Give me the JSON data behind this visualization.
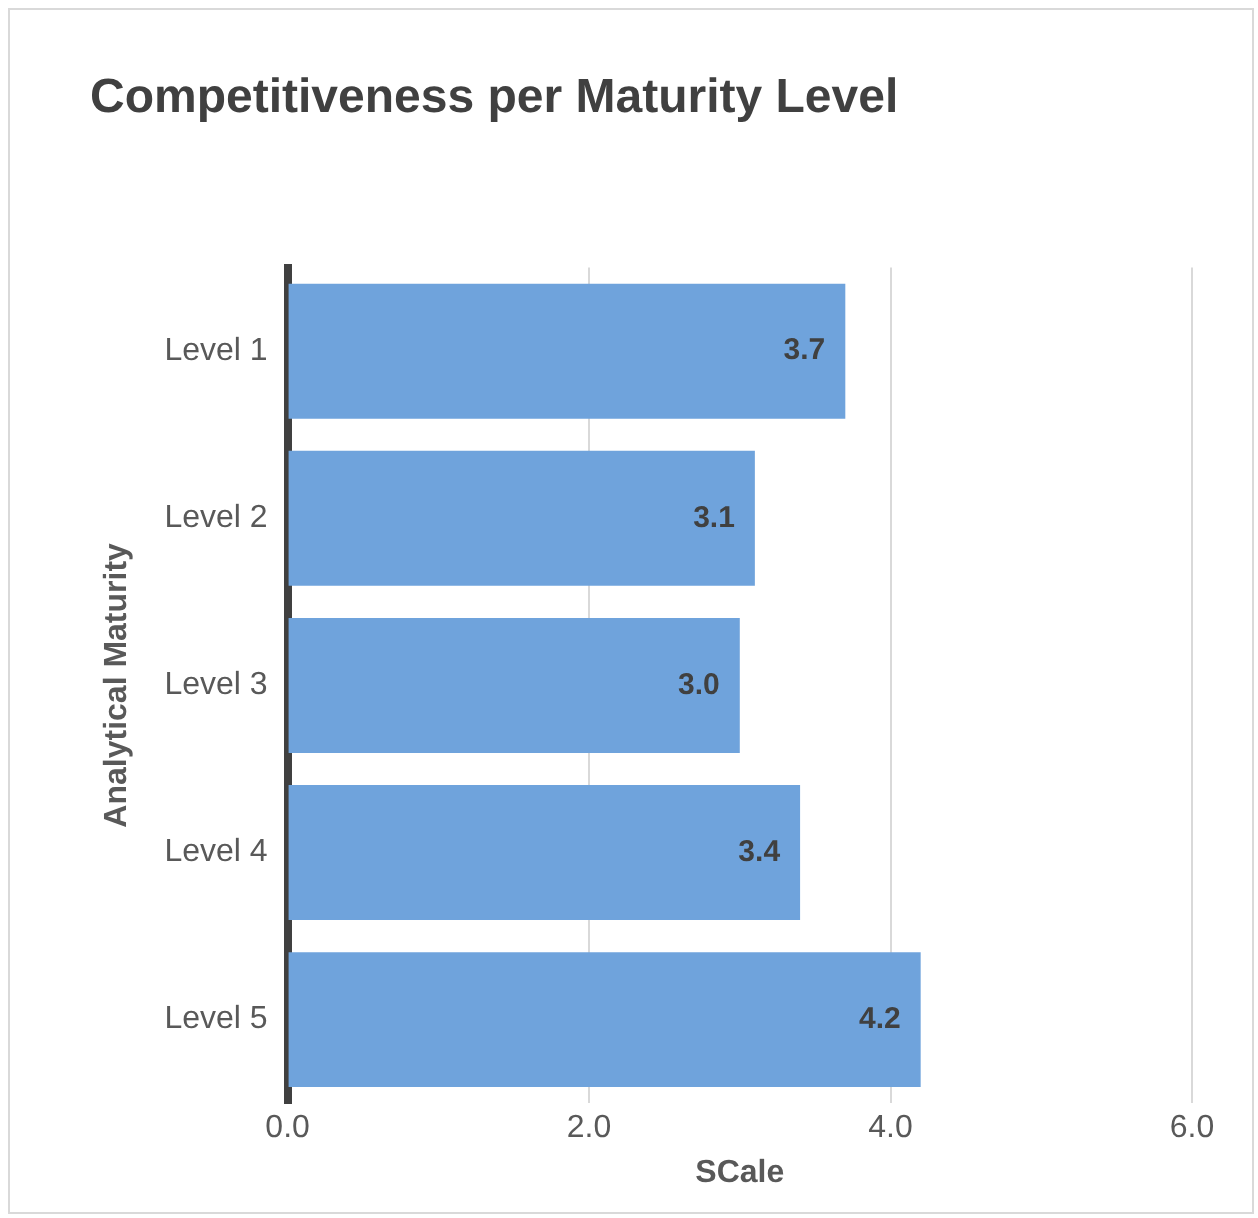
{
  "chart_data": {
    "type": "bar",
    "orientation": "horizontal",
    "title": "Competitiveness per Maturity Level",
    "xlabel": "SCale",
    "ylabel": "Analytical Maturity",
    "categories": [
      "Level 1",
      "Level 2",
      "Level 3",
      "Level 4",
      "Level 5"
    ],
    "values": [
      3.7,
      3.1,
      3.0,
      3.4,
      4.2
    ],
    "value_labels": [
      "3.7",
      "3.1",
      "3.0",
      "3.4",
      "4.2"
    ],
    "color": "#6fa3dc",
    "xlim": [
      0,
      6
    ],
    "xticks": [
      {
        "value": 0,
        "label": "0.0"
      },
      {
        "value": 2,
        "label": "2.0"
      },
      {
        "value": 4,
        "label": "4.0"
      },
      {
        "value": 6,
        "label": "6.0"
      }
    ],
    "grid": "x",
    "legend": false
  }
}
